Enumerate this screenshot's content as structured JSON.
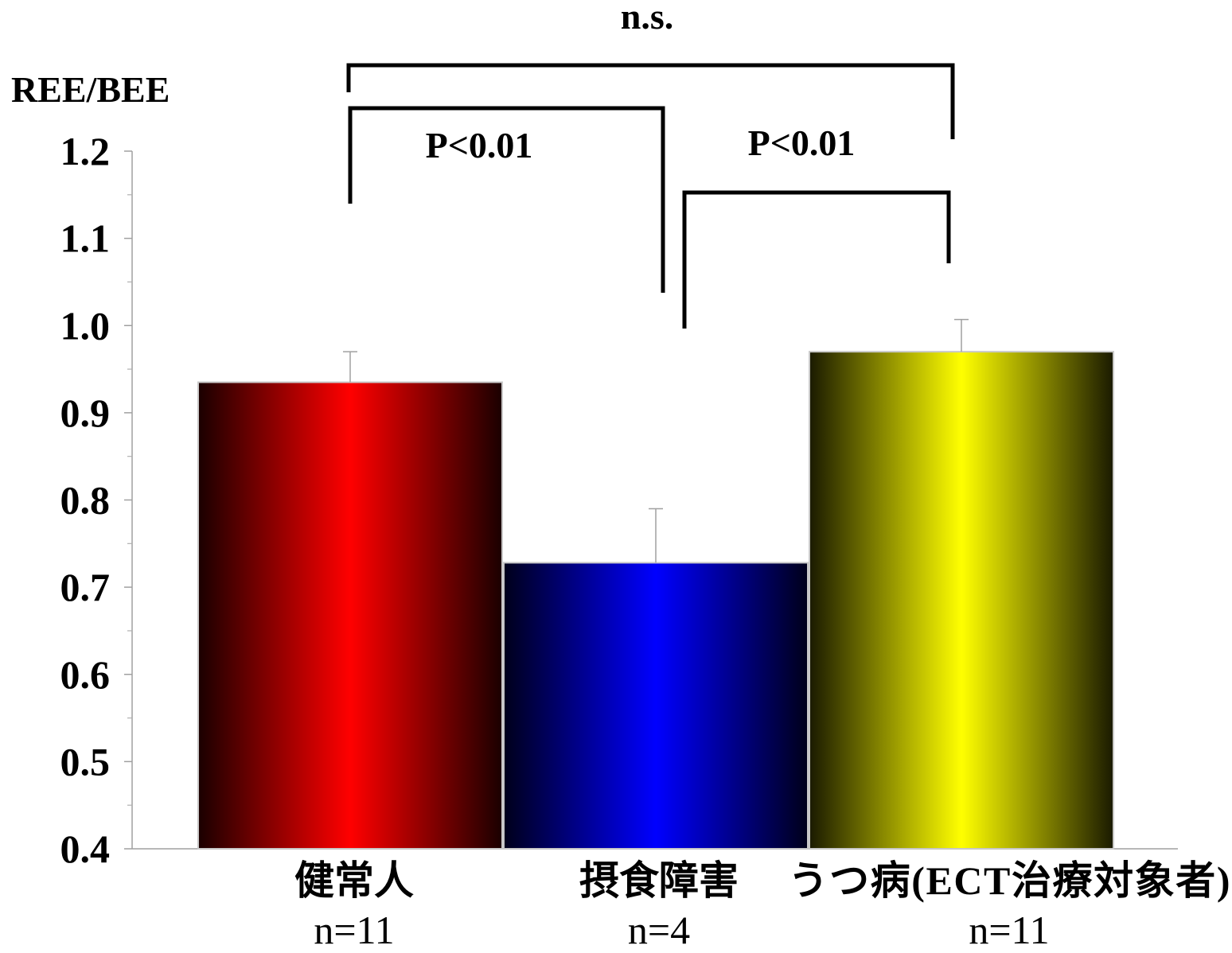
{
  "chart_data": {
    "type": "bar",
    "ylabel": "REE/BEE",
    "ylim": [
      0.4,
      1.2
    ],
    "y_ticks": [
      "1.2",
      "1.1",
      "1.0",
      "0.9",
      "0.8",
      "0.7",
      "0.6",
      "0.5",
      "0.4"
    ],
    "y_tick_values": [
      1.2,
      1.1,
      1.0,
      0.9,
      0.8,
      0.7,
      0.6,
      0.5,
      0.4
    ],
    "grid": false,
    "categories": [
      "健常人",
      "摂食障害",
      "うつ病(ECT治療対象者)"
    ],
    "n_labels": [
      "n=11",
      "n=4",
      "n=11"
    ],
    "values": [
      0.935,
      0.728,
      0.97
    ],
    "error_upper": [
      0.97,
      0.79,
      1.007
    ],
    "colors": [
      "#ff0000",
      "#0000ff",
      "#ffff00"
    ],
    "significance": [
      {
        "label": "P<0.01",
        "groups": [
          0,
          1
        ]
      },
      {
        "label": "P<0.01",
        "groups": [
          1,
          2
        ]
      },
      {
        "label": "n.s.",
        "groups": [
          0,
          2
        ]
      }
    ]
  }
}
